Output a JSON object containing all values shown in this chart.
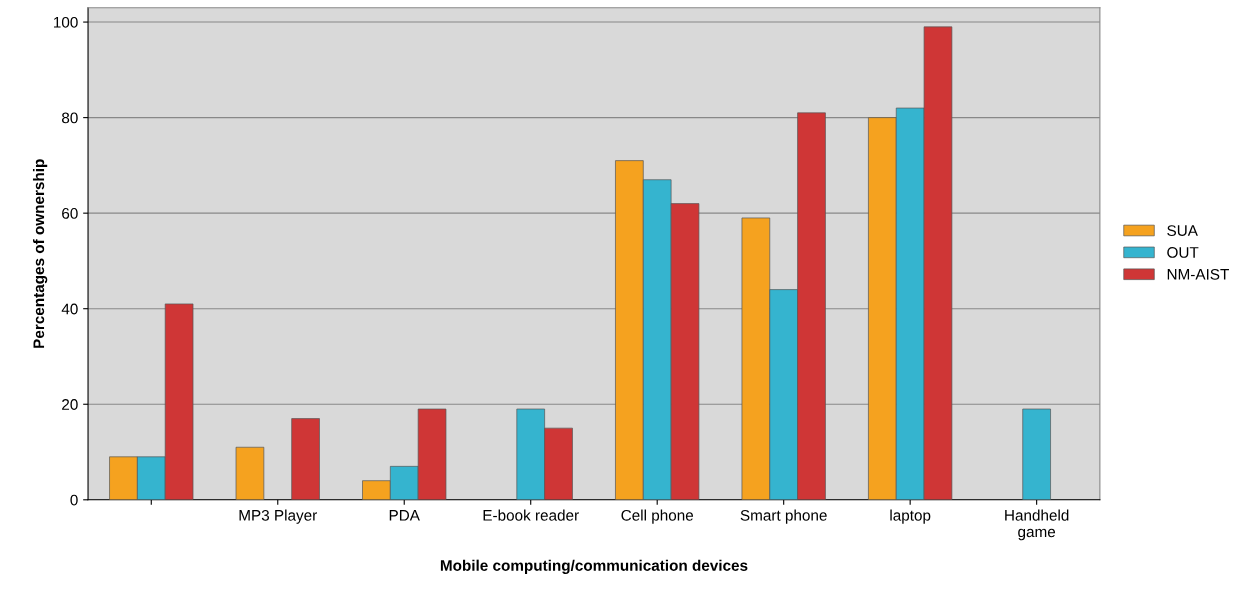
{
  "chart_data": {
    "type": "bar",
    "xlabel": "Mobile computing/communication devices",
    "ylabel": "Percentages of ownership",
    "categories": [
      null,
      "MP3 Player",
      "PDA",
      "E-book reader",
      "Cell phone",
      "Smart phone",
      "laptop",
      "Handheld\ngame"
    ],
    "series": [
      {
        "name": "SUA",
        "color": "#f5a21f",
        "values": [
          9,
          11,
          4,
          null,
          71,
          59,
          80,
          null
        ]
      },
      {
        "name": "OUT",
        "color": "#35b4cf",
        "values": [
          9,
          null,
          7,
          19,
          67,
          44,
          82,
          19
        ]
      },
      {
        "name": "NM-AIST",
        "color": "#cf3636",
        "values": [
          41,
          17,
          19,
          15,
          62,
          81,
          99,
          null
        ]
      }
    ],
    "ylim": [
      0,
      103
    ],
    "yticks": [
      0,
      20,
      40,
      60,
      80,
      100
    ],
    "grid": "y",
    "legend": "right"
  }
}
